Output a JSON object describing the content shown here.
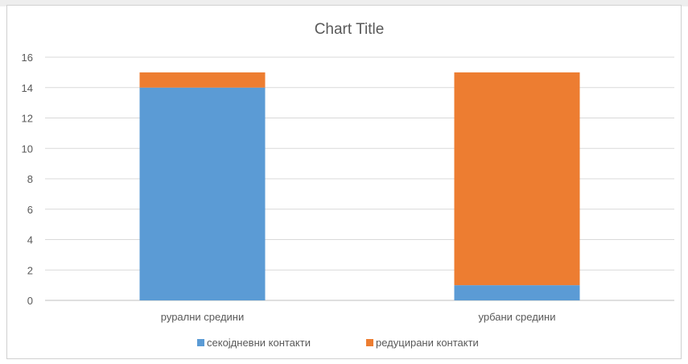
{
  "chart_data": {
    "type": "bar",
    "stacked": true,
    "title": "Chart Title",
    "categories": [
      "рурални средини",
      "урбани средини"
    ],
    "series": [
      {
        "name": "секојдневни контакти",
        "values": [
          14,
          1
        ],
        "color": "#5b9bd5"
      },
      {
        "name": "редуцирани контакти",
        "values": [
          1,
          14
        ],
        "color": "#ed7d31"
      }
    ],
    "ylim": [
      0,
      16
    ],
    "yticks": [
      0,
      2,
      4,
      6,
      8,
      10,
      12,
      14,
      16
    ],
    "grid": true,
    "legend_position": "bottom"
  }
}
